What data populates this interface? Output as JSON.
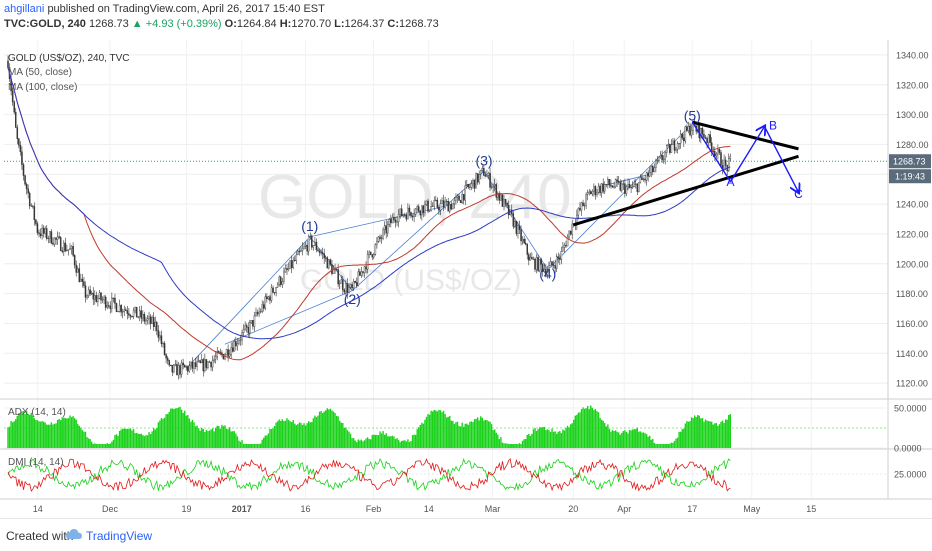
{
  "header": {
    "author": "ahgillani",
    "published": "published on TradingView.com, April 26, 2017 15:40 EST",
    "symbol": "TVC:GOLD, 240",
    "last": "1268.73",
    "change": "+4.93 (+0.39%)",
    "o_label": "O:",
    "o_value": "1264.84",
    "h_label": "H:",
    "h_value": "1270.70",
    "l_label": "L:",
    "l_value": "1264.37",
    "c_label": "C:",
    "c_value": "1268.73"
  },
  "footer": {
    "created": "Created with",
    "brand": "TradingView"
  },
  "colors": {
    "candles": "#333333",
    "ma50": "#c0392b",
    "ma100": "#2e3bc4",
    "wave": "#1f3a93",
    "annot": "#1a1aff",
    "adx": "#19d219",
    "dmi_plus": "#19d219",
    "dmi_minus": "#e01a1a",
    "triangle": "#000000",
    "channel": "#4a7fd0"
  },
  "chart_data": {
    "type": "candlestick",
    "title": "GOLD (US$/OZ), 240, TVC",
    "watermark": "GOLD, 240",
    "watermark_sub": "GOLD (US$/OZ)",
    "legend": [
      "MA (50, close)",
      "MA (100, close)"
    ],
    "ylim": [
      1110,
      1350
    ],
    "y_ticks": [
      1120,
      1140,
      1160,
      1180,
      1200,
      1220,
      1240,
      1260,
      1280,
      1300,
      1320,
      1340
    ],
    "last_price_label": "1268.73",
    "countdown_label": "1:19:43",
    "x_ticks": [
      "14",
      "Dec",
      "19",
      "2017",
      "16",
      "Feb",
      "14",
      "Mar",
      "20",
      "Apr",
      "17",
      "May",
      "15"
    ],
    "price_path": [
      [
        "Nov 7",
        1336
      ],
      [
        "Nov 9",
        1285
      ],
      [
        "Nov 11",
        1255
      ],
      [
        "Nov 14",
        1222
      ],
      [
        "Nov 17",
        1218
      ],
      [
        "Nov 22",
        1208
      ],
      [
        "Nov 25",
        1180
      ],
      [
        "Nov 30",
        1175
      ],
      [
        "Dec 6",
        1168
      ],
      [
        "Dec 12",
        1158
      ],
      [
        "Dec 15",
        1128
      ],
      [
        "Dec 19",
        1130
      ],
      [
        "Dec 23",
        1132
      ],
      [
        "Dec 28",
        1140
      ],
      [
        "Jan 3",
        1158
      ],
      [
        "Jan 9",
        1185
      ],
      [
        "Jan 13",
        1200
      ],
      [
        "Jan 17",
        1215
      ],
      [
        "Jan 19",
        1210
      ],
      [
        "Jan 25",
        1185
      ],
      [
        "Jan 27",
        1182
      ],
      [
        "Jan 31",
        1205
      ],
      [
        "Feb 6",
        1232
      ],
      [
        "Feb 13",
        1238
      ],
      [
        "Feb 20",
        1240
      ],
      [
        "Feb 27",
        1262
      ],
      [
        "Mar 2",
        1248
      ],
      [
        "Mar 6",
        1228
      ],
      [
        "Mar 10",
        1202
      ],
      [
        "Mar 14",
        1196
      ],
      [
        "Mar 17",
        1205
      ],
      [
        "Mar 20",
        1228
      ],
      [
        "Mar 24",
        1248
      ],
      [
        "Mar 28",
        1253
      ],
      [
        "Apr 3",
        1250
      ],
      [
        "Apr 7",
        1260
      ],
      [
        "Apr 11",
        1275
      ],
      [
        "Apr 17",
        1292
      ],
      [
        "Apr 20",
        1286
      ],
      [
        "Apr 25",
        1264
      ],
      [
        "Apr 26",
        1268
      ]
    ],
    "wave_labels": [
      {
        "label": "(1)",
        "x": "Jan 17",
        "y": 1222
      },
      {
        "label": "(2)",
        "x": "Jan 27",
        "y": 1173
      },
      {
        "label": "(3)",
        "x": "Feb 27",
        "y": 1266
      },
      {
        "label": "(4)",
        "x": "Mar 14",
        "y": 1190
      },
      {
        "label": "(5)",
        "x": "Apr 17",
        "y": 1296
      },
      {
        "label": "A",
        "x": "Apr 26",
        "y": 1252
      },
      {
        "label": "B",
        "x": "May 6",
        "y": 1290
      },
      {
        "label": "C",
        "x": "May 12",
        "y": 1244
      }
    ],
    "adx": {
      "name": "ADX (14, 14)",
      "ticks": [
        50,
        0
      ],
      "tick_labels": [
        "50.0000",
        "0.0000"
      ]
    },
    "dmi": {
      "name": "DMI (14, 14)",
      "ticks": [
        25
      ],
      "tick_labels": [
        "25.0000"
      ]
    }
  }
}
